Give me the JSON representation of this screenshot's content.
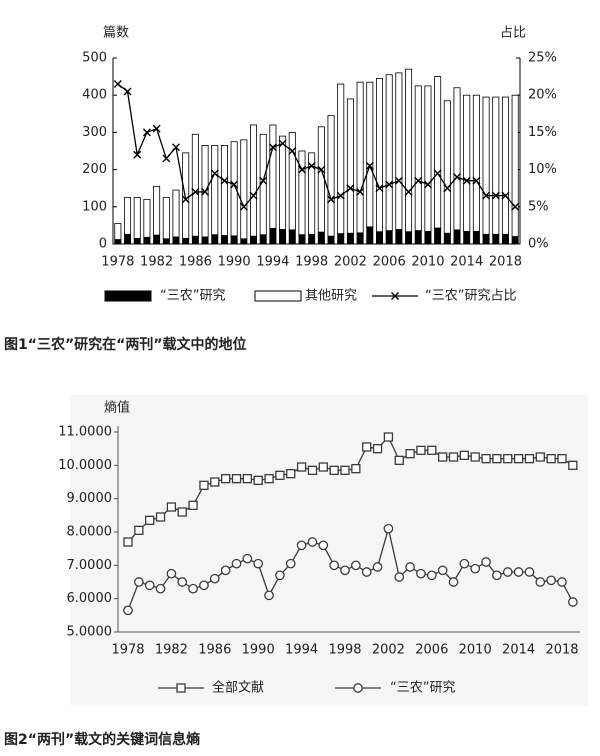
{
  "chart_data": [
    {
      "type": "bar",
      "stacked": true,
      "caption": "图1“三农”研究在“两刊”载文中的地位",
      "ylabel": "篇数",
      "y2label": "占比",
      "categories": [
        "1978",
        null,
        null,
        null,
        "1982",
        null,
        null,
        null,
        "1986",
        null,
        null,
        null,
        "1990",
        null,
        null,
        null,
        "1994",
        null,
        null,
        null,
        "1998",
        null,
        null,
        null,
        "2002",
        null,
        null,
        null,
        "2006",
        null,
        null,
        null,
        "2010",
        null,
        null,
        null,
        "2014",
        null,
        null,
        null,
        "2018",
        null
      ],
      "ylim": [
        0,
        500
      ],
      "yticks": [
        0,
        100,
        200,
        300,
        400,
        500
      ],
      "y2lim": [
        0,
        25
      ],
      "y2ticks": [
        {
          "value": 0,
          "label": "0%"
        },
        {
          "value": 5,
          "label": "5%"
        },
        {
          "value": 10,
          "label": "10%"
        },
        {
          "value": 15,
          "label": "15%"
        },
        {
          "value": 20,
          "label": "20%"
        },
        {
          "value": 25,
          "label": "25%"
        }
      ],
      "series": [
        {
          "name": "“三农”研究",
          "color": "#000000",
          "values": [
            12,
            26,
            15,
            18,
            24,
            14,
            19,
            15,
            21,
            19,
            25,
            23,
            22,
            14,
            21,
            25,
            42,
            39,
            38,
            25,
            26,
            32,
            21,
            28,
            29,
            30,
            46,
            33,
            36,
            39,
            33,
            36,
            34,
            43,
            29,
            38,
            34,
            34,
            26,
            26,
            26,
            20
          ]
        },
        {
          "name": "其他研究",
          "color": "#ffffff",
          "values": [
            43,
            99,
            110,
            102,
            131,
            111,
            126,
            230,
            274,
            246,
            240,
            242,
            253,
            266,
            299,
            270,
            278,
            251,
            262,
            225,
            219,
            283,
            324,
            402,
            361,
            405,
            389,
            412,
            419,
            421,
            437,
            389,
            391,
            407,
            356,
            382,
            366,
            366,
            369,
            369,
            369,
            380
          ]
        },
        {
          "name": "“三农”研究占比",
          "color": "#000000",
          "axis": "y2",
          "marker": "x",
          "values": [
            21.5,
            20.5,
            12,
            15,
            15.5,
            11.5,
            13,
            6,
            7,
            7,
            9.5,
            8.5,
            8,
            5,
            6.5,
            8.5,
            13,
            13.5,
            12.5,
            10,
            10.5,
            10,
            6,
            6.5,
            7.5,
            7,
            10.5,
            7.5,
            8,
            8.5,
            7,
            8.5,
            8,
            9.5,
            7.5,
            9,
            8.5,
            8.5,
            6.5,
            6.5,
            6.5,
            5
          ]
        }
      ]
    },
    {
      "type": "line",
      "caption": "图2“两刊”载文的关键词信息熵",
      "ylabel": "熵值",
      "categories": [
        "1978",
        null,
        null,
        null,
        "1982",
        null,
        null,
        null,
        "1986",
        null,
        null,
        null,
        "1990",
        null,
        null,
        null,
        "1994",
        null,
        null,
        null,
        "1998",
        null,
        null,
        null,
        "2002",
        null,
        null,
        null,
        "2006",
        null,
        null,
        null,
        "2010",
        null,
        null,
        null,
        "2014",
        null,
        null,
        null,
        "2018",
        null
      ],
      "ylim": [
        5,
        11
      ],
      "yticks": [
        {
          "value": 5,
          "label": "5.0000"
        },
        {
          "value": 6,
          "label": "6.0000"
        },
        {
          "value": 7,
          "label": "7.0000"
        },
        {
          "value": 8,
          "label": "8.0000"
        },
        {
          "value": 9,
          "label": "9.0000"
        },
        {
          "value": 10,
          "label": "10.0000"
        },
        {
          "value": 11,
          "label": "11.0000"
        }
      ],
      "series": [
        {
          "name": "全部文献",
          "color": "#3a3a3a",
          "marker": "square",
          "values": [
            7.7,
            8.05,
            8.35,
            8.45,
            8.75,
            8.6,
            8.8,
            9.4,
            9.5,
            9.6,
            9.6,
            9.6,
            9.55,
            9.6,
            9.7,
            9.75,
            9.95,
            9.85,
            9.95,
            9.85,
            9.85,
            9.9,
            10.55,
            10.5,
            10.85,
            10.15,
            10.35,
            10.45,
            10.45,
            10.25,
            10.25,
            10.3,
            10.25,
            10.2,
            10.2,
            10.2,
            10.2,
            10.2,
            10.25,
            10.2,
            10.2,
            10.0
          ]
        },
        {
          "name": "“三农”研究",
          "color": "#3a3a3a",
          "marker": "circle",
          "values": [
            5.65,
            6.5,
            6.4,
            6.3,
            6.75,
            6.5,
            6.3,
            6.4,
            6.6,
            6.85,
            7.05,
            7.2,
            7.05,
            6.1,
            6.7,
            7.05,
            7.6,
            7.7,
            7.6,
            7.0,
            6.85,
            7.0,
            6.8,
            6.95,
            8.1,
            6.65,
            6.95,
            6.75,
            6.7,
            6.85,
            6.5,
            7.05,
            6.9,
            7.1,
            6.7,
            6.8,
            6.8,
            6.8,
            6.5,
            6.55,
            6.5,
            5.9
          ]
        }
      ]
    }
  ]
}
